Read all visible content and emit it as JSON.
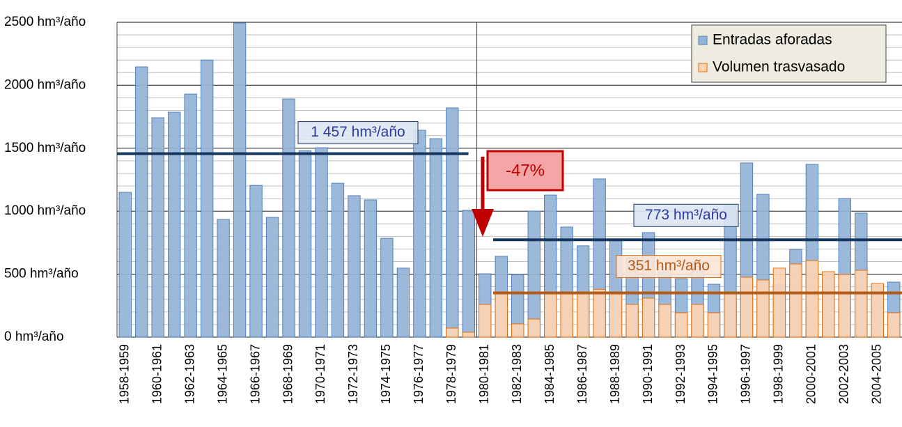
{
  "chart_data": {
    "type": "bar",
    "categories": [
      "1958-1959",
      null,
      "1960-1961",
      null,
      "1962-1963",
      null,
      "1964-1965",
      null,
      "1966-1967",
      null,
      "1968-1969",
      null,
      "1970-1971",
      null,
      "1972-1973",
      null,
      "1974-1975",
      null,
      "1976-1977",
      null,
      "1978-1979",
      null,
      "1980-1981",
      null,
      "1982-1983",
      null,
      "1984-1985",
      null,
      "1986-1987",
      null,
      "1988-1989",
      null,
      "1990-1991",
      null,
      "1992-1993",
      null,
      "1994-1995",
      null,
      "1996-1997",
      null,
      "1998-1999",
      null,
      "2000-2001",
      null,
      "2002-2003",
      null,
      "2004-2005",
      null
    ],
    "series": [
      {
        "name": "Entradas aforadas",
        "color": "#95b3d7",
        "stroke": "#4f81bd",
        "values": [
          1150,
          2146,
          1742,
          1786,
          1930,
          2200,
          935,
          2494,
          1205,
          951,
          1891,
          1480,
          1504,
          1222,
          1123,
          1090,
          785,
          548,
          1643,
          1576,
          1820,
          1007,
          503,
          642,
          498,
          1001,
          1128,
          874,
          725,
          1256,
          770,
          630,
          830,
          520,
          465,
          600,
          420,
          1045,
          1383,
          1134,
          415,
          697,
          1372,
          490,
          1101,
          985,
          410,
          437
        ]
      },
      {
        "name": "Volumen trasvasado",
        "color": "#fbd4b4",
        "stroke": "#e46c0a",
        "values": [
          0,
          0,
          0,
          0,
          0,
          0,
          0,
          0,
          0,
          0,
          0,
          0,
          0,
          0,
          0,
          0,
          0,
          0,
          0,
          0,
          72,
          39,
          260,
          355,
          105,
          144,
          355,
          355,
          355,
          380,
          350,
          260,
          310,
          260,
          194,
          260,
          194,
          355,
          476,
          454,
          548,
          581,
          608,
          520,
          498,
          531,
          426,
          194
        ]
      }
    ],
    "ylim": [
      0,
      2500
    ],
    "yticks": [
      {
        "value": 0,
        "label": "0 hm³/año"
      },
      {
        "value": 500,
        "label": "500 hm³/año"
      },
      {
        "value": 1000,
        "label": "1000 hm³/año"
      },
      {
        "value": 1500,
        "label": "1500 hm³/año"
      },
      {
        "value": 2000,
        "label": "2000 hm³/año"
      },
      {
        "value": 2500,
        "label": "2500 hm³/año"
      }
    ],
    "grid": true,
    "legend": "upper right",
    "reference_lines": [
      {
        "value": 1457,
        "label": "1 457 hm³/año",
        "color": "#17375e",
        "text_color": "#2e3aa0"
      },
      {
        "value": 773,
        "label": "773 hm³/año",
        "color": "#17375e",
        "text_color": "#2e3aa0"
      },
      {
        "value": 351,
        "label": "351 hm³/año",
        "color": "#b25a16",
        "text_color": "#b25a16"
      }
    ],
    "change_annotation": "-47%"
  }
}
